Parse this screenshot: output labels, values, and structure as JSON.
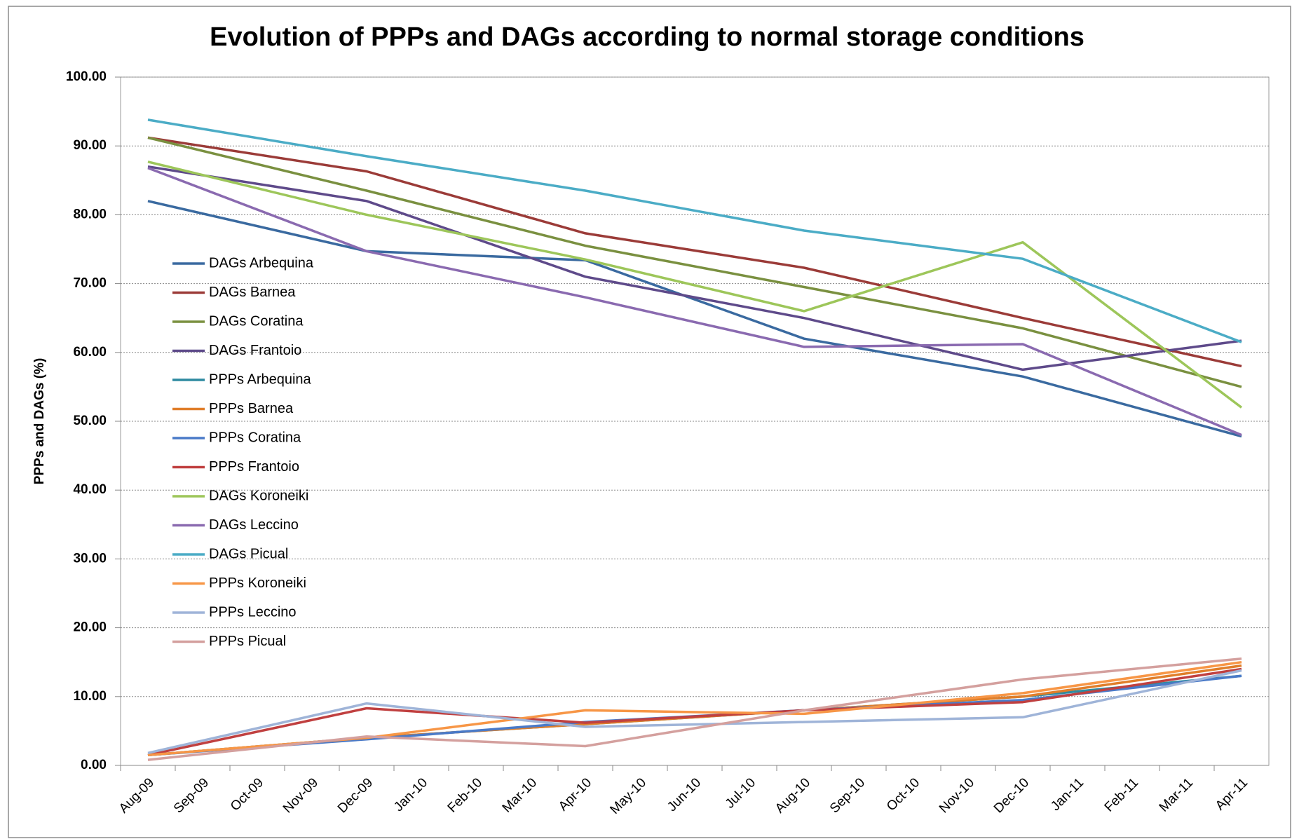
{
  "chart_data": {
    "type": "line",
    "title": "Evolution of PPPs and DAGs according to  normal  storage conditions",
    "y_label": "PPPs and DAGs (%)",
    "categories": [
      "Aug-09",
      "Sep-09",
      "Oct-09",
      "Nov-09",
      "Dec-09",
      "Jan-10",
      "Feb-10",
      "Mar-10",
      "Apr-10",
      "May-10",
      "Jun-10",
      "Jul-10",
      "Aug-10",
      "Sep-10",
      "Oct-10",
      "Nov-10",
      "Dec-10",
      "Jan-11",
      "Feb-11",
      "Mar-11",
      "Apr-11"
    ],
    "x": [
      "Aug-09",
      "Dec-09",
      "Apr-10",
      "Aug-10",
      "Dec-10",
      "Apr-11"
    ],
    "ylim": [
      0,
      100
    ],
    "yticks": [
      {
        "value": 0,
        "label": "0.00"
      },
      {
        "value": 10,
        "label": "10.00"
      },
      {
        "value": 20,
        "label": "20.00"
      },
      {
        "value": 30,
        "label": "30.00"
      },
      {
        "value": 40,
        "label": "40.00"
      },
      {
        "value": 50,
        "label": "50.00"
      },
      {
        "value": 60,
        "label": "60.00"
      },
      {
        "value": 70,
        "label": "70.00"
      },
      {
        "value": 80,
        "label": "80.00"
      },
      {
        "value": 90,
        "label": "90.00"
      },
      {
        "value": 100,
        "label": "100.00"
      }
    ],
    "grid": true,
    "legend": "left",
    "series": [
      {
        "name": "DAGs Arbequina",
        "color": "#3a6aa0",
        "values": [
          82.0,
          74.7,
          73.4,
          62.0,
          56.5,
          47.8
        ]
      },
      {
        "name": "DAGs Barnea",
        "color": "#9b3b38",
        "values": [
          91.2,
          86.3,
          77.3,
          72.3,
          65.0,
          58.0
        ]
      },
      {
        "name": "DAGs Coratina",
        "color": "#7a9040",
        "values": [
          91.2,
          83.5,
          75.5,
          69.5,
          63.5,
          55.0
        ]
      },
      {
        "name": "DAGs Frantoio",
        "color": "#5e4a8a",
        "values": [
          87.0,
          82.0,
          71.0,
          65.0,
          57.5,
          61.7
        ]
      },
      {
        "name": "PPPs Arbequina",
        "color": "#2e8aa0",
        "values": [
          1.5,
          4.0,
          6.0,
          8.0,
          10.0,
          13.0
        ]
      },
      {
        "name": "PPPs Barnea",
        "color": "#e07e2a",
        "values": [
          1.5,
          4.0,
          6.0,
          8.0,
          10.0,
          14.5
        ]
      },
      {
        "name": "PPPs Coratina",
        "color": "#4a7ac8",
        "values": [
          1.5,
          3.8,
          6.3,
          8.0,
          9.5,
          13.0
        ]
      },
      {
        "name": "PPPs Frantoio",
        "color": "#c04040",
        "values": [
          1.5,
          8.3,
          6.2,
          8.0,
          9.2,
          14.0
        ]
      },
      {
        "name": "DAGs Koroneiki",
        "color": "#9dc65a",
        "values": [
          87.7,
          80.0,
          73.5,
          66.0,
          76.0,
          52.0
        ]
      },
      {
        "name": "DAGs Leccino",
        "color": "#8a6ab0",
        "values": [
          86.8,
          74.7,
          68.0,
          60.8,
          61.2,
          48.0
        ]
      },
      {
        "name": "DAGs Picual",
        "color": "#4bacc6",
        "values": [
          93.8,
          88.5,
          83.5,
          77.7,
          73.6,
          61.5
        ]
      },
      {
        "name": "PPPs Koroneiki",
        "color": "#f79646",
        "values": [
          1.5,
          4.0,
          8.0,
          7.5,
          10.5,
          15.0
        ]
      },
      {
        "name": "PPPs Leccino",
        "color": "#9fb4d8",
        "values": [
          1.8,
          9.0,
          5.6,
          6.3,
          7.0,
          13.8
        ]
      },
      {
        "name": "PPPs Picual",
        "color": "#d4a09e",
        "values": [
          0.8,
          4.2,
          2.8,
          8.0,
          12.5,
          15.5
        ]
      }
    ]
  }
}
